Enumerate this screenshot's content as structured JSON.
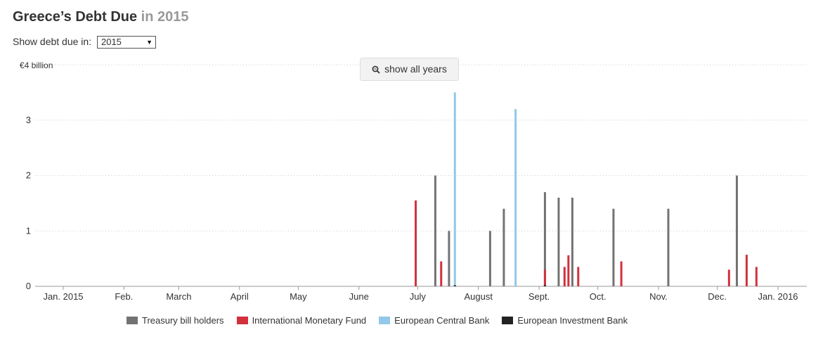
{
  "header": {
    "title_main": "Greece’s Debt Due",
    "title_year": "in 2015"
  },
  "selector": {
    "label": "Show debt due in:",
    "selected": "2015"
  },
  "toolbar": {
    "show_all_label": "show all years"
  },
  "colors": {
    "treasury": "#737373",
    "imf": "#d1313d",
    "ecb": "#93c8e8",
    "eib": "#222222"
  },
  "chart_data": {
    "type": "bar",
    "ylabel": "",
    "y_unit_label": "€4 billion",
    "ylim": [
      0,
      4
    ],
    "y_ticks": [
      {
        "value": 0,
        "label": "0"
      },
      {
        "value": 1,
        "label": "1"
      },
      {
        "value": 2,
        "label": "2"
      },
      {
        "value": 3,
        "label": "3"
      },
      {
        "value": 4,
        "label": "€4 billion"
      }
    ],
    "x_range": [
      "2015-01-01",
      "2016-01-01"
    ],
    "x_ticks": [
      {
        "date": "2015-01-01",
        "label": "Jan. 2015"
      },
      {
        "date": "2015-02-01",
        "label": "Feb."
      },
      {
        "date": "2015-03-01",
        "label": "March"
      },
      {
        "date": "2015-04-01",
        "label": "April"
      },
      {
        "date": "2015-05-01",
        "label": "May"
      },
      {
        "date": "2015-06-01",
        "label": "June"
      },
      {
        "date": "2015-07-01",
        "label": "July"
      },
      {
        "date": "2015-08-01",
        "label": "August"
      },
      {
        "date": "2015-09-01",
        "label": "Sept."
      },
      {
        "date": "2015-10-01",
        "label": "Oct."
      },
      {
        "date": "2015-11-01",
        "label": "Nov."
      },
      {
        "date": "2015-12-01",
        "label": "Dec."
      },
      {
        "date": "2016-01-01",
        "label": "Jan. 2016"
      }
    ],
    "grid": true,
    "legend_position": "bottom",
    "series": [
      {
        "name": "Treasury bill holders",
        "color_key": "treasury",
        "points": [
          {
            "date": "2015-07-10",
            "value": 2.0
          },
          {
            "date": "2015-07-17",
            "value": 1.0
          },
          {
            "date": "2015-08-07",
            "value": 1.0
          },
          {
            "date": "2015-08-14",
            "value": 1.4
          },
          {
            "date": "2015-09-04",
            "value": 1.7
          },
          {
            "date": "2015-09-11",
            "value": 1.6
          },
          {
            "date": "2015-09-18",
            "value": 1.6
          },
          {
            "date": "2015-10-09",
            "value": 1.4
          },
          {
            "date": "2015-11-06",
            "value": 1.4
          },
          {
            "date": "2015-12-11",
            "value": 2.0
          }
        ]
      },
      {
        "name": "International Monetary Fund",
        "color_key": "imf",
        "points": [
          {
            "date": "2015-06-30",
            "value": 1.55
          },
          {
            "date": "2015-07-13",
            "value": 0.45
          },
          {
            "date": "2015-09-04",
            "value": 0.3
          },
          {
            "date": "2015-09-14",
            "value": 0.35
          },
          {
            "date": "2015-09-16",
            "value": 0.56
          },
          {
            "date": "2015-09-21",
            "value": 0.35
          },
          {
            "date": "2015-10-13",
            "value": 0.45
          },
          {
            "date": "2015-12-07",
            "value": 0.3
          },
          {
            "date": "2015-12-16",
            "value": 0.57
          },
          {
            "date": "2015-12-21",
            "value": 0.35
          }
        ]
      },
      {
        "name": "European Central Bank",
        "color_key": "ecb",
        "points": [
          {
            "date": "2015-07-20",
            "value": 3.5
          },
          {
            "date": "2015-08-20",
            "value": 3.2
          }
        ]
      },
      {
        "name": "European Investment Bank",
        "color_key": "eib",
        "points": [
          {
            "date": "2015-07-20",
            "value": 0.02
          },
          {
            "date": "2015-09-04",
            "value": 0.02
          }
        ]
      }
    ]
  }
}
